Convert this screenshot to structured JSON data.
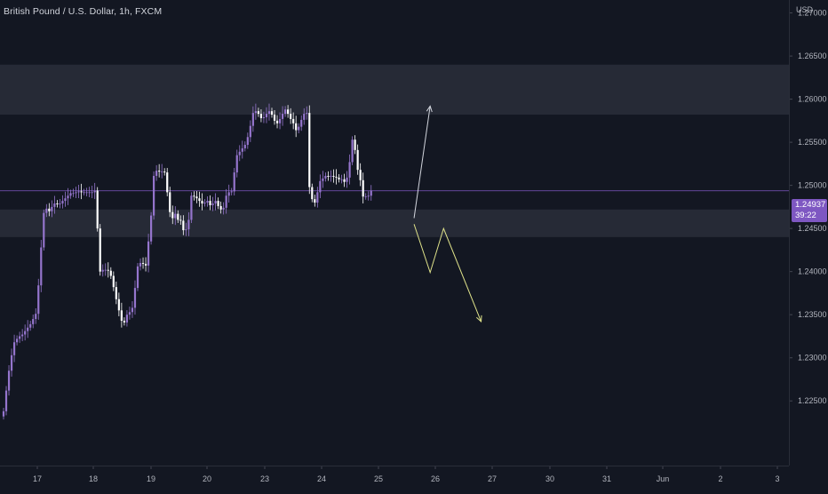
{
  "header": {
    "title": "British Pound / U.S. Dollar, 1h, FXCM"
  },
  "price_axis": {
    "currency": "USD",
    "ticks": [
      "1.27000",
      "1.26500",
      "1.26000",
      "1.25500",
      "1.25000",
      "1.24500",
      "1.24000",
      "1.23500",
      "1.23000",
      "1.22500"
    ],
    "current_price": "1.24937",
    "countdown": "39:22"
  },
  "time_axis": {
    "ticks": [
      "17",
      "18",
      "19",
      "20",
      "23",
      "24",
      "25",
      "26",
      "27",
      "30",
      "31",
      "Jun",
      "2",
      "3"
    ]
  },
  "colors": {
    "background": "#131722",
    "bull_candle": "#9575cd",
    "bear_candle": "#ffffff",
    "zone": "#2a2e39",
    "bull_arrow": "#d1d4dc",
    "bear_arrow": "#dfe28a",
    "price_line": "#7e57c2"
  },
  "zones": [
    {
      "from": 1.2582,
      "to": 1.264
    },
    {
      "from": 1.244,
      "to": 1.2472
    }
  ],
  "projections": {
    "bullish_path": [
      {
        "bar": 153,
        "price": 1.2462
      },
      {
        "bar": 159,
        "price": 1.2592
      }
    ],
    "bearish_path": [
      {
        "bar": 153,
        "price": 1.2455
      },
      {
        "bar": 159,
        "price": 1.2399
      },
      {
        "bar": 164,
        "price": 1.245
      },
      {
        "bar": 178,
        "price": 1.2342
      }
    ]
  },
  "chart_data": {
    "type": "candlestick",
    "series": [
      {
        "name": "British Pound / U.S. Dollar",
        "close": [
          1.2238,
          1.2262,
          1.2285,
          1.2303,
          1.2318,
          1.2322,
          1.2325,
          1.2327,
          1.2331,
          1.2335,
          1.2339,
          1.2345,
          1.2351,
          1.2384,
          1.2428,
          1.2468,
          1.2473,
          1.247,
          1.2475,
          1.2479,
          1.2478,
          1.2479,
          1.2482,
          1.2485,
          1.2488,
          1.2491,
          1.2491,
          1.2492,
          1.2493,
          1.2492,
          1.2492,
          1.2492,
          1.2492,
          1.2492,
          1.2494,
          1.245,
          1.24,
          1.2402,
          1.2402,
          1.2401,
          1.2395,
          1.2382,
          1.2368,
          1.2355,
          1.2343,
          1.2341,
          1.235,
          1.2353,
          1.2358,
          1.2381,
          1.2406,
          1.241,
          1.2409,
          1.2407,
          1.2435,
          1.2465,
          1.2511,
          1.2517,
          1.2516,
          1.2516,
          1.2515,
          1.2492,
          1.2469,
          1.2462,
          1.2467,
          1.246,
          1.2459,
          1.2448,
          1.2449,
          1.246,
          1.2488,
          1.2487,
          1.2485,
          1.2482,
          1.2479,
          1.248,
          1.2482,
          1.2477,
          1.2479,
          1.2482,
          1.2476,
          1.2472,
          1.2474,
          1.2488,
          1.2492,
          1.2493,
          1.2515,
          1.2535,
          1.2539,
          1.2543,
          1.2547,
          1.2556,
          1.2569,
          1.2584,
          1.2586,
          1.2583,
          1.2578,
          1.2579,
          1.2583,
          1.2586,
          1.2582,
          1.2575,
          1.2572,
          1.2577,
          1.2583,
          1.2588,
          1.2583,
          1.2577,
          1.2572,
          1.2564,
          1.2568,
          1.2576,
          1.2583,
          1.2584,
          1.2498,
          1.2484,
          1.248,
          1.2492,
          1.2505,
          1.2508,
          1.2511,
          1.251,
          1.2511,
          1.251,
          1.2509,
          1.2507,
          1.2507,
          1.2504,
          1.2509,
          1.2527,
          1.2553,
          1.2541,
          1.2518,
          1.2506,
          1.2487,
          1.2487,
          1.2488,
          1.2494
        ]
      }
    ],
    "price_range": [
      1.2175,
      1.2715
    ],
    "last_price": 1.24937,
    "grid": false,
    "legend": "none"
  }
}
